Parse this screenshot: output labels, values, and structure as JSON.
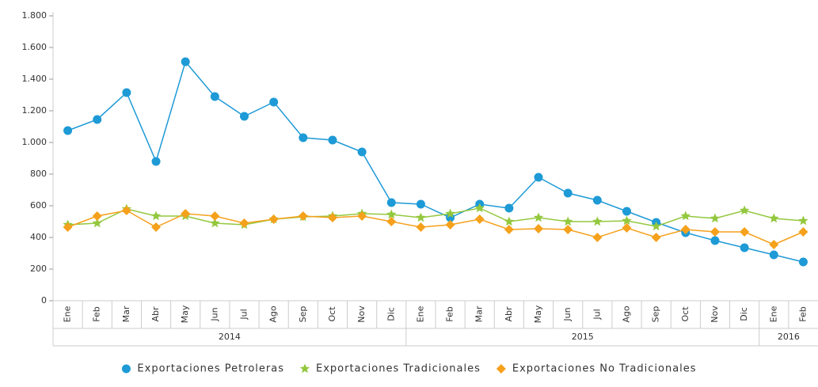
{
  "chart_data": {
    "type": "line",
    "categories": [
      "Ene",
      "Feb",
      "Mar",
      "Abr",
      "May",
      "Jun",
      "Jul",
      "Ago",
      "Sep",
      "Oct",
      "Nov",
      "Dic",
      "Ene",
      "Feb",
      "Mar",
      "Abr",
      "May",
      "Jun",
      "Jul",
      "Ago",
      "Sep",
      "Oct",
      "Nov",
      "Dic",
      "Ene",
      "Feb"
    ],
    "x_groups": [
      {
        "label": "2014",
        "count": 12
      },
      {
        "label": "2015",
        "count": 12
      },
      {
        "label": "2016",
        "count": 2
      }
    ],
    "series": [
      {
        "name": "Exportaciones Petroleras",
        "color": "#1e9ad6",
        "marker": "circle",
        "values": [
          1075,
          1145,
          1315,
          880,
          1510,
          1290,
          1165,
          1255,
          1030,
          1015,
          940,
          620,
          610,
          525,
          610,
          585,
          780,
          680,
          635,
          565,
          495,
          430,
          380,
          335,
          290,
          245
        ]
      },
      {
        "name": "Exportaciones Tradicionales",
        "color": "#93c83e",
        "marker": "star",
        "values": [
          480,
          490,
          580,
          535,
          535,
          490,
          480,
          515,
          530,
          535,
          550,
          545,
          525,
          550,
          585,
          500,
          525,
          500,
          500,
          505,
          470,
          535,
          520,
          570,
          520,
          505
        ]
      },
      {
        "name": "Exportaciones No Tradicionales",
        "color": "#f5a11c",
        "marker": "diamond",
        "values": [
          465,
          535,
          570,
          465,
          550,
          535,
          490,
          515,
          535,
          525,
          535,
          500,
          465,
          480,
          515,
          450,
          455,
          450,
          400,
          460,
          400,
          450,
          435,
          435,
          355,
          435
        ]
      }
    ],
    "ylim": [
      0,
      1800
    ],
    "yticks": [
      0,
      200,
      400,
      600,
      800,
      {
        "value": 1000,
        "label": "1.000"
      },
      {
        "value": 1200,
        "label": "1.200"
      },
      {
        "value": 1400,
        "label": "1.400"
      },
      {
        "value": 1600,
        "label": "1.600"
      },
      {
        "value": 1800,
        "label": "1.800"
      }
    ],
    "grid": false,
    "legend": "bottom"
  }
}
